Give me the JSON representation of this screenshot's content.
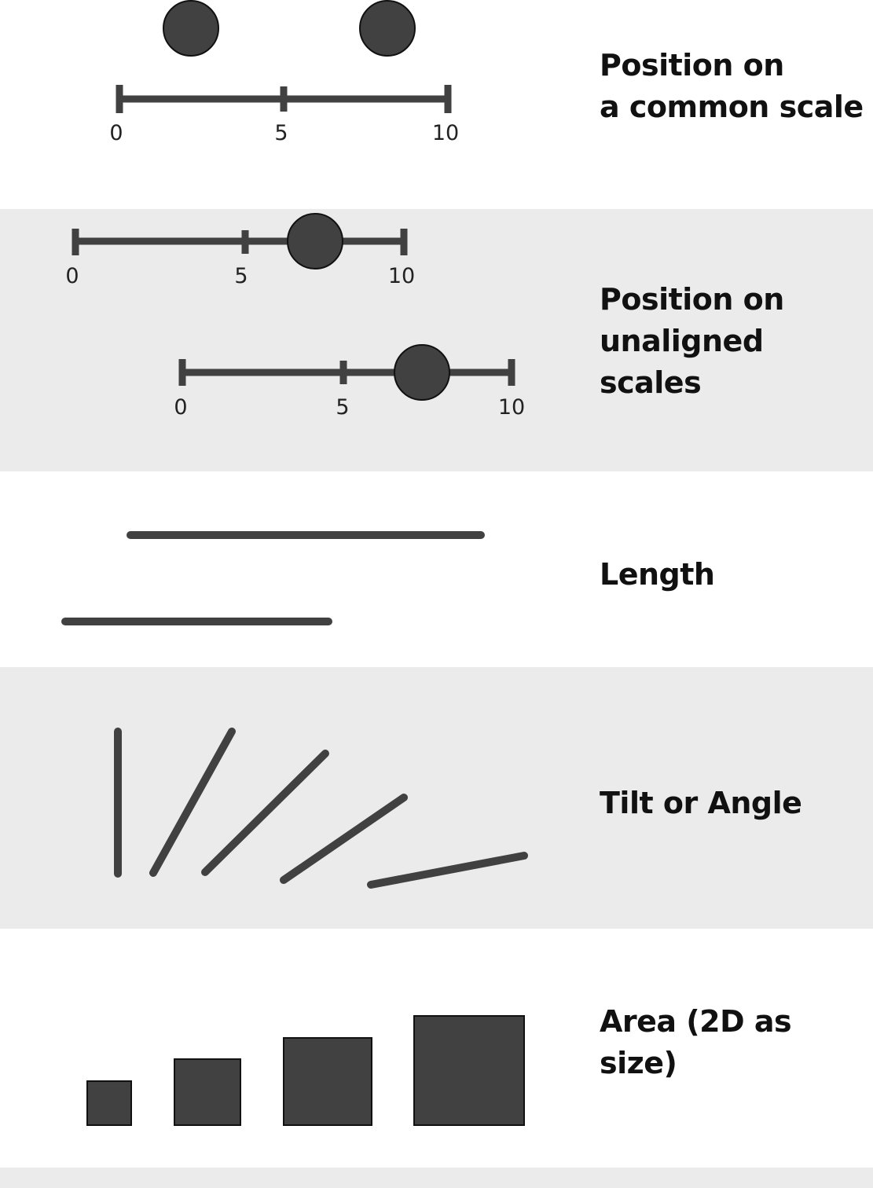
{
  "colors": {
    "mark": "#414141",
    "band_gray": "#ebebeb",
    "band_white": "#ffffff",
    "text": "#111111"
  },
  "channels": [
    {
      "id": "common-scale",
      "label": "Position on\na common scale"
    },
    {
      "id": "unaligned-scales",
      "label": "Position on\nunaligned\nscales"
    },
    {
      "id": "length",
      "label": "Length"
    },
    {
      "id": "tilt",
      "label": "Tilt or Angle"
    },
    {
      "id": "area",
      "label": "Area (2D as size)"
    }
  ],
  "scale_ticks": [
    "0",
    "5",
    "10"
  ]
}
